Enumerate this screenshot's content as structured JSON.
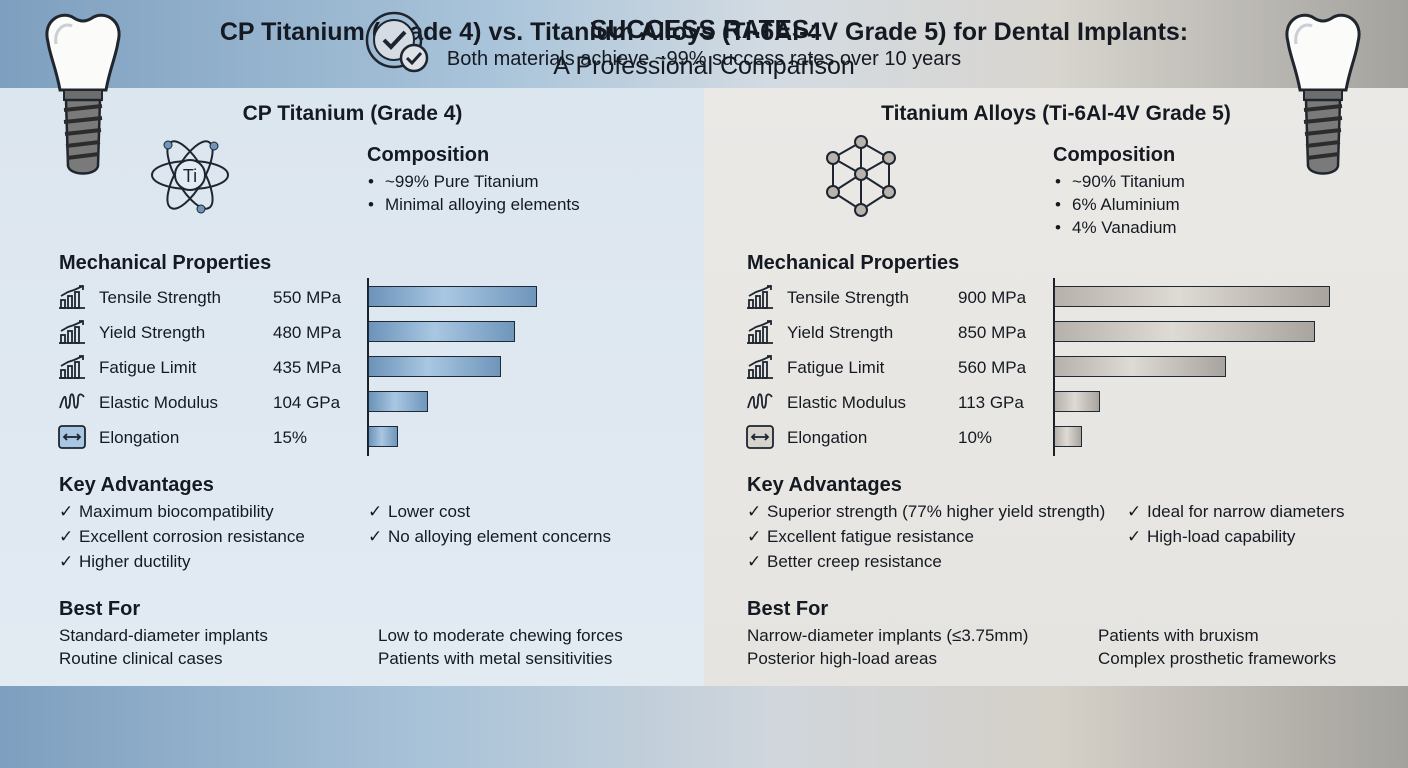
{
  "header": {
    "title": "CP Titanium (Grade 4) vs. Titanium Alloys (Ti-6Al-4V Grade 5) for Dental Implants:",
    "subtitle": "A Professional Comparison"
  },
  "left": {
    "title": "CP Titanium (Grade 4)",
    "symbol": "Ti",
    "composition_heading": "Composition",
    "composition": [
      "~99% Pure Titanium",
      "Minimal alloying elements"
    ],
    "mechanical_heading": "Mechanical Properties",
    "properties": [
      {
        "label": "Tensile Strength",
        "value": "550 MPa",
        "icon": "bar-chart-icon"
      },
      {
        "label": "Yield Strength",
        "value": "480 MPa",
        "icon": "bar-chart-icon"
      },
      {
        "label": "Fatigue Limit",
        "value": "435 MPa",
        "icon": "bar-chart-icon"
      },
      {
        "label": "Elastic Modulus",
        "value": "104 GPa",
        "icon": "spring-icon"
      },
      {
        "label": "Elongation",
        "value": "15%",
        "icon": "stretch-arrows-icon"
      }
    ],
    "advantages_heading": "Key Advantages",
    "advantages_col1": [
      "Maximum biocompatibility",
      "Excellent corrosion resistance",
      "Higher ductility"
    ],
    "advantages_col2": [
      "Lower cost",
      "No alloying element concerns"
    ],
    "bestfor_heading": "Best For",
    "bestfor_col1": [
      "Standard-diameter implants",
      "Routine clinical cases"
    ],
    "bestfor_col2": [
      "Low to moderate chewing forces",
      "Patients with metal sensitivities"
    ]
  },
  "right": {
    "title": "Titanium Alloys (Ti-6Al-4V Grade 5)",
    "composition_heading": "Composition",
    "composition": [
      "~90% Titanium",
      "6% Aluminium",
      "4% Vanadium"
    ],
    "mechanical_heading": "Mechanical Properties",
    "properties": [
      {
        "label": "Tensile Strength",
        "value": "900 MPa",
        "icon": "bar-chart-icon"
      },
      {
        "label": "Yield Strength",
        "value": "850 MPa",
        "icon": "bar-chart-icon"
      },
      {
        "label": "Fatigue Limit",
        "value": "560 MPa",
        "icon": "bar-chart-icon"
      },
      {
        "label": "Elastic Modulus",
        "value": "113 GPa",
        "icon": "spring-icon"
      },
      {
        "label": "Elongation",
        "value": "10%",
        "icon": "stretch-arrows-icon"
      }
    ],
    "advantages_heading": "Key Advantages",
    "advantages_col1": [
      "Superior strength (77% higher yield strength)",
      "Excellent fatigue resistance",
      "Better creep resistance"
    ],
    "advantages_col2": [
      "Ideal for narrow diameters",
      "High-load capability"
    ],
    "bestfor_heading": "Best For",
    "bestfor_col1": [
      "Narrow-diameter implants (≤3.75mm)",
      "Posterior high-load areas"
    ],
    "bestfor_col2": [
      "Patients with bruxism",
      "Complex prosthetic frameworks"
    ]
  },
  "footer": {
    "title": "SUCCESS RATES:",
    "text": "Both materials achieve ~99% success rates over 10 years"
  },
  "chart_data": [
    {
      "type": "bar",
      "orientation": "horizontal",
      "categories": [
        "Tensile Strength",
        "Yield Strength",
        "Fatigue Limit",
        "Elastic Modulus",
        "Elongation"
      ],
      "values": [
        550,
        480,
        435,
        104,
        15
      ],
      "units": [
        "MPa",
        "MPa",
        "MPa",
        "GPa",
        "%"
      ],
      "color": "#8fb2d3"
    },
    {
      "type": "bar",
      "orientation": "horizontal",
      "categories": [
        "Tensile Strength",
        "Yield Strength",
        "Fatigue Limit",
        "Elastic Modulus",
        "Elongation"
      ],
      "values": [
        900,
        850,
        560,
        113,
        10
      ],
      "units": [
        "MPa",
        "MPa",
        "MPa",
        "GPa",
        "%"
      ],
      "color": "#c6c2bb"
    }
  ],
  "colors": {
    "accent_blue": "#6f96bb",
    "accent_gray": "#a9a49d",
    "text": "#151a22"
  }
}
